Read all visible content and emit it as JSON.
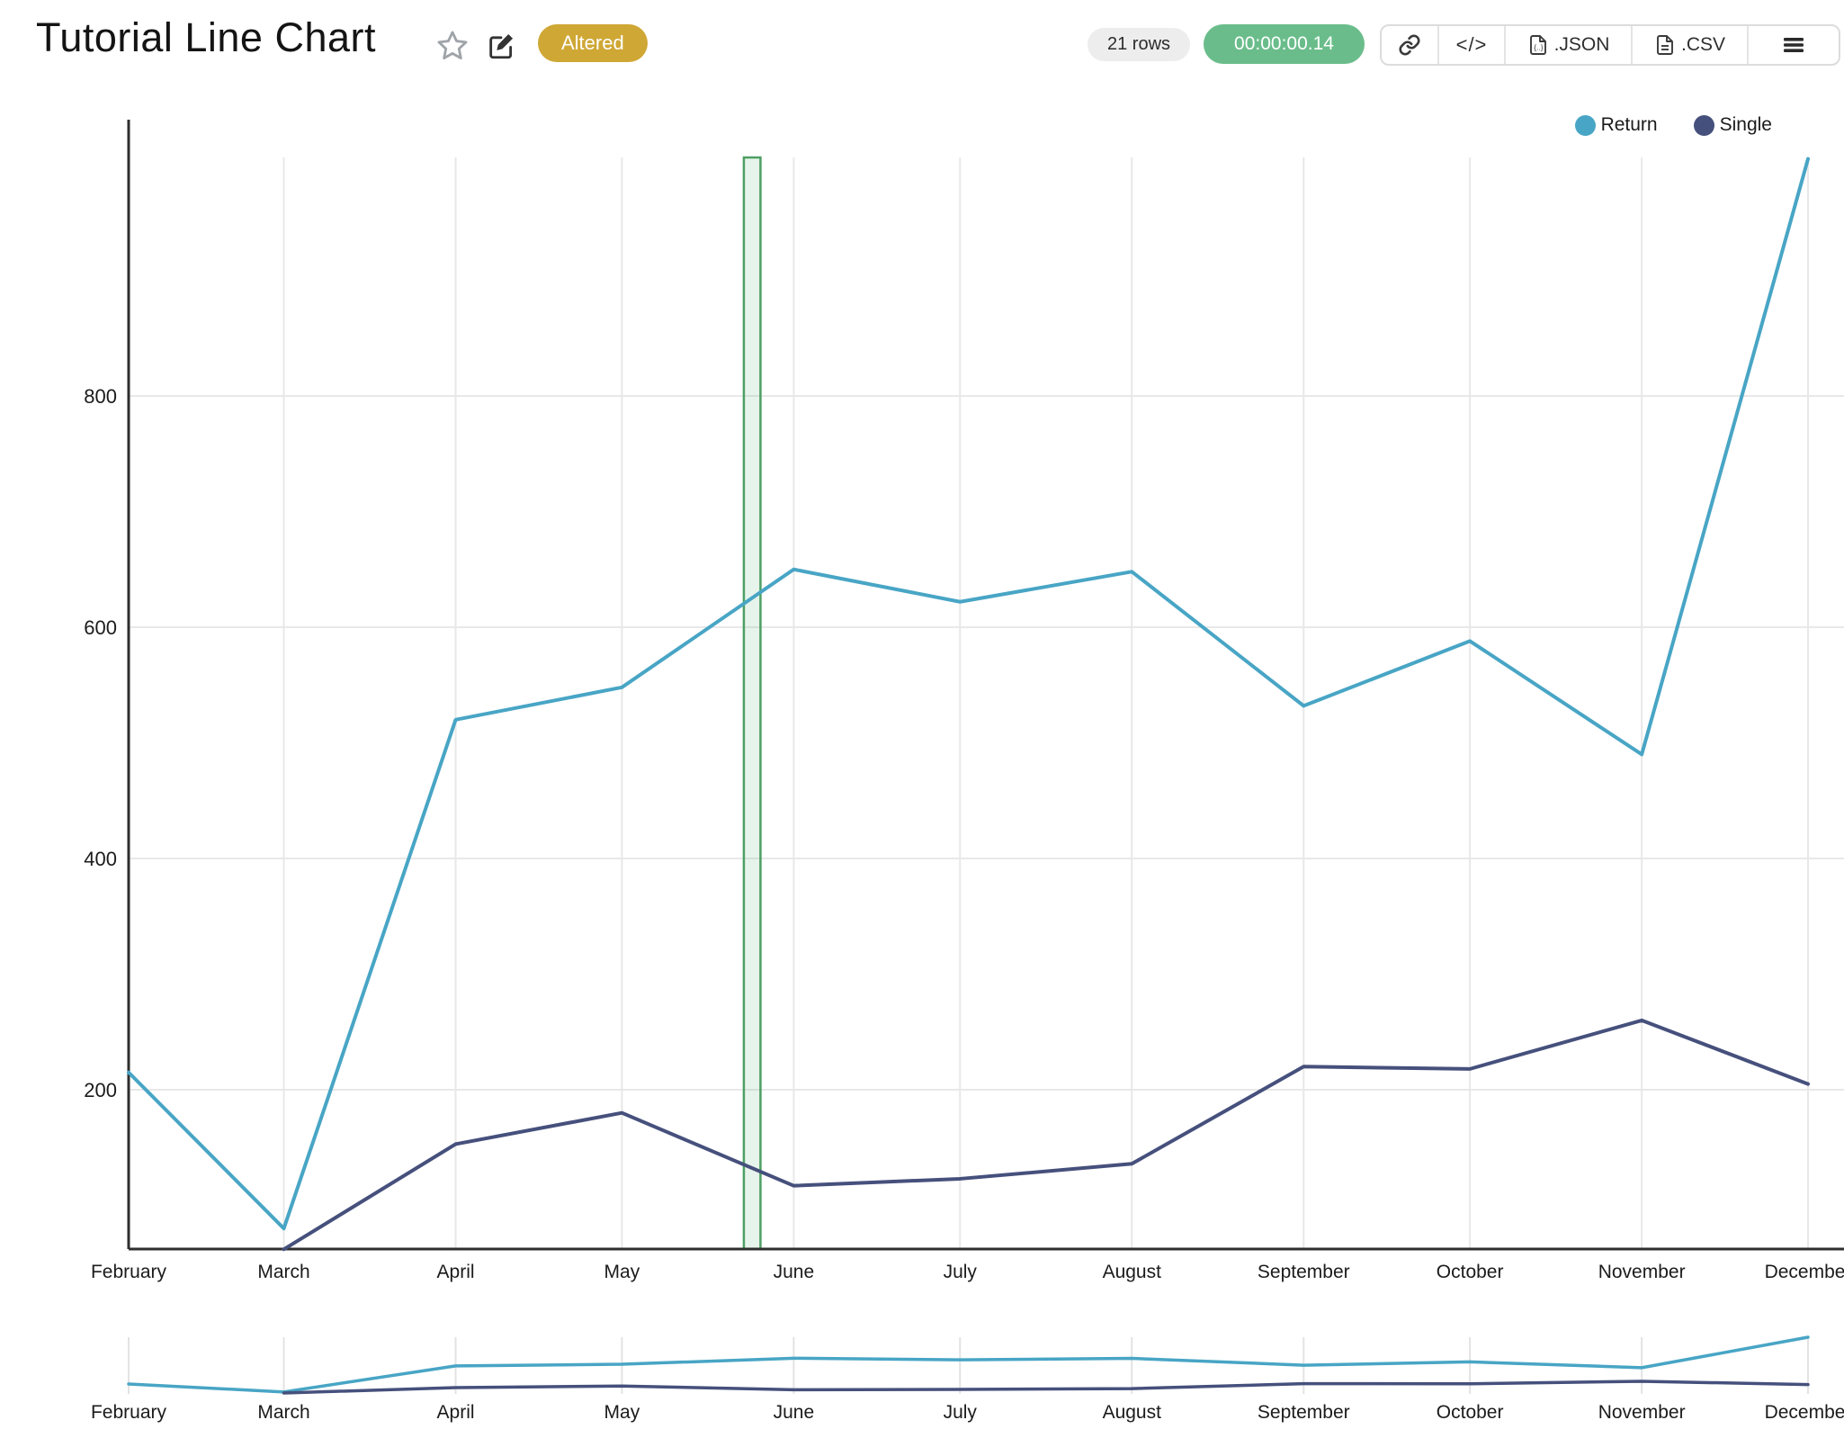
{
  "header": {
    "title": "Tutorial Line Chart",
    "badge": "Altered",
    "rows_label": "21 rows",
    "timer": "00:00:00.14",
    "export_json": ".JSON",
    "export_csv": ".CSV"
  },
  "chart_data": {
    "type": "line",
    "title": "Tutorial Line Chart",
    "categories": [
      "February",
      "March",
      "April",
      "May",
      "June",
      "July",
      "August",
      "September",
      "October",
      "November",
      "December"
    ],
    "x_day_offsets": [
      0,
      28,
      59,
      89,
      120,
      150,
      181,
      212,
      242,
      273,
      303
    ],
    "series": [
      {
        "name": "Return",
        "color": "#48a5c5",
        "values": [
          215,
          80,
          520,
          548,
          650,
          622,
          648,
          532,
          588,
          490,
          1005
        ]
      },
      {
        "name": "Single",
        "color": "#46507c",
        "values": [
          null,
          62,
          153,
          180,
          117,
          123,
          136,
          220,
          218,
          260,
          205
        ]
      }
    ],
    "yticks": [
      200,
      400,
      600,
      800
    ],
    "ylim": [
      62,
      1005
    ],
    "grid": true,
    "legend_position": "top-right",
    "navigator": true,
    "annotation_band": {
      "start_day_offset": 111,
      "end_day_offset": 114,
      "stroke": "#4d9f63",
      "fill": "rgba(106,189,139,0.16)"
    },
    "colors": {
      "axis": "#2e2e2e",
      "gridline": "#e8e8e8",
      "tick_label": "#1b1b1b"
    }
  }
}
